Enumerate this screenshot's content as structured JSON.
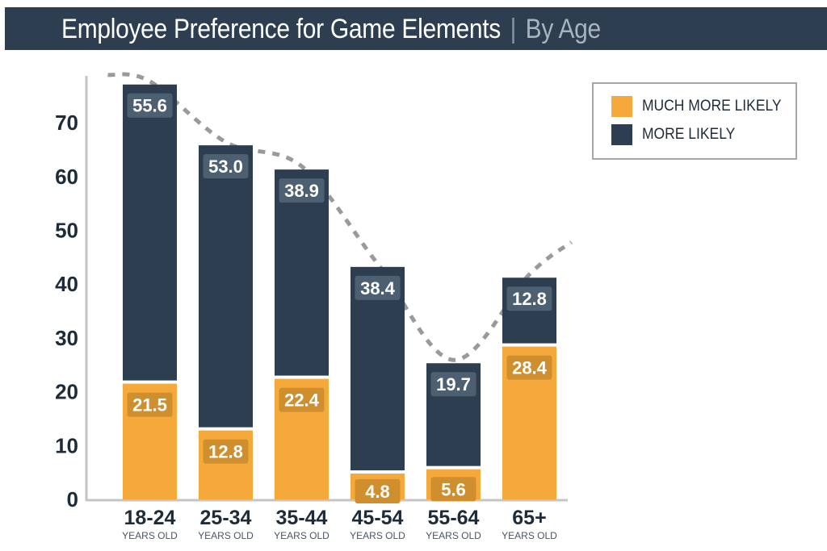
{
  "header": {
    "title": "Employee Preference for Game Elements",
    "separator": "|",
    "subtitle": "By Age"
  },
  "colors": {
    "header_bg": "#2d3e50",
    "much_more_likely": "#f5a93a",
    "more_likely": "#2d3e50",
    "label_box_dark": "#4d6072",
    "label_box_orange": "#d08f2f",
    "trend_line": "#9a9a9a",
    "axis": "#c4c4c4"
  },
  "legend": {
    "items": [
      {
        "label": "MUCH MORE LIKELY",
        "color": "#f5a93a"
      },
      {
        "label": "MORE LIKELY",
        "color": "#2d3e50"
      }
    ]
  },
  "chart_data": {
    "type": "bar",
    "stacked": true,
    "categories": [
      "18-24",
      "25-34",
      "35-44",
      "45-54",
      "55-64",
      "65+"
    ],
    "category_sublabel": "YEARS OLD",
    "series": [
      {
        "name": "MUCH MORE LIKELY",
        "values": [
          21.5,
          12.8,
          22.4,
          4.8,
          5.6,
          28.4
        ]
      },
      {
        "name": "MORE LIKELY",
        "values": [
          55.6,
          53.0,
          38.9,
          38.4,
          19.7,
          12.8
        ]
      }
    ],
    "yticks": [
      0,
      10,
      20,
      30,
      40,
      50,
      60,
      70
    ],
    "ylim": [
      0,
      78
    ],
    "legend_position": "top-right",
    "grid": false,
    "trend_line": "dashed curve following bar totals"
  }
}
